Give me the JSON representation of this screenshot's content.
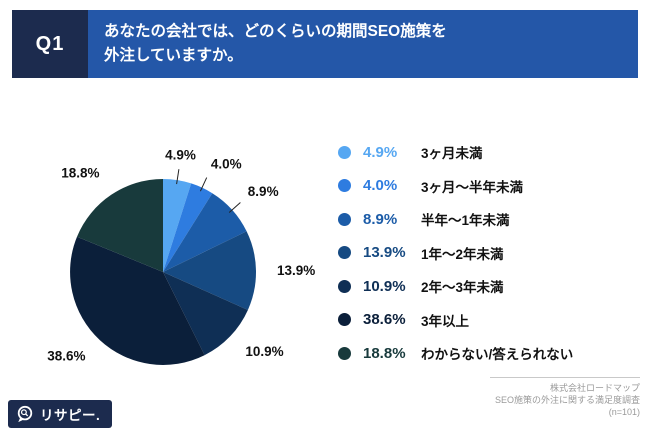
{
  "header": {
    "q_label": "Q1",
    "title_line1": "あなたの会社では、どのくらいの期間SEO施策を",
    "title_line2": "外注していますか。"
  },
  "chart_data": {
    "type": "pie",
    "title": "あなたの会社では、どのくらいの期間SEO施策を外注していますか。",
    "categories": [
      "3ヶ月未満",
      "3ヶ月〜半年未満",
      "半年〜1年未満",
      "1年〜2年未満",
      "2年〜3年未満",
      "3年以上",
      "わからない/答えられない"
    ],
    "values": [
      4.9,
      4.0,
      8.9,
      13.9,
      10.9,
      38.6,
      18.8
    ],
    "value_labels": [
      "4.9%",
      "4.0%",
      "8.9%",
      "13.9%",
      "10.9%",
      "38.6%",
      "18.8%"
    ],
    "colors": [
      "#56a7f2",
      "#2e7ce0",
      "#1c5ca8",
      "#164a82",
      "#0f2f55",
      "#0b1f3a",
      "#183a3c"
    ],
    "start_angle_deg": 0,
    "direction": "clockwise",
    "legend_position": "right",
    "sample_size": "(n=101)"
  },
  "footer": {
    "company": "株式会社ロードマップ",
    "survey": "SEO施策の外注に関する満足度調査",
    "n": "(n=101)"
  },
  "logo": {
    "text": "リサピー."
  }
}
